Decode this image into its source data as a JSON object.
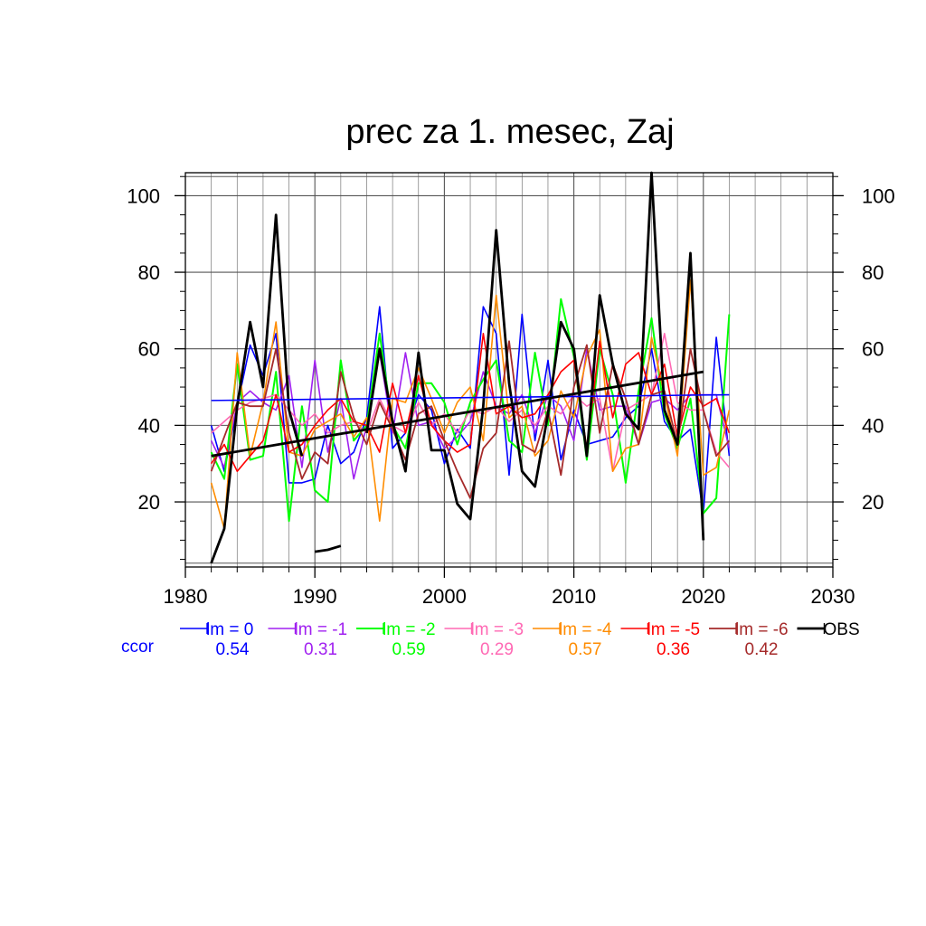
{
  "chart_data": {
    "type": "line",
    "title": "prec za 1. mesec, Zaj",
    "xlim": [
      1980,
      2030
    ],
    "ylim": [
      3,
      106
    ],
    "x_ticks": [
      1980,
      1990,
      2000,
      2010,
      2020,
      2030
    ],
    "y_ticks": [
      20,
      40,
      60,
      80,
      100
    ],
    "grid": true,
    "legend_position": "bottom",
    "ccor_label": "ccor",
    "x": [
      1982,
      1983,
      1984,
      1985,
      1986,
      1987,
      1988,
      1989,
      1990,
      1991,
      1992,
      1993,
      1994,
      1995,
      1996,
      1997,
      1998,
      1999,
      2000,
      2001,
      2002,
      2003,
      2004,
      2005,
      2006,
      2007,
      2008,
      2009,
      2010,
      2011,
      2012,
      2013,
      2014,
      2015,
      2016,
      2017,
      2018,
      2019,
      2020,
      2021,
      2022
    ],
    "series": [
      {
        "name": "lm = 0",
        "ccor": "0.54",
        "color": "#0000ff",
        "width": 1.6,
        "values": [
          40,
          28,
          45,
          61,
          53,
          64,
          25,
          25,
          26,
          40,
          30,
          33,
          42,
          71,
          34,
          38,
          48,
          44,
          30,
          39,
          34,
          71,
          64,
          27,
          69,
          36,
          57,
          31,
          44,
          35,
          36,
          37,
          42,
          45,
          60,
          41,
          36,
          39,
          17,
          63,
          32
        ]
      },
      {
        "name": "lm = -1",
        "ccor": "0.31",
        "color": "#a020f0",
        "width": 1.6,
        "values": [
          36,
          29,
          46,
          49,
          46,
          44,
          53,
          29,
          57,
          33,
          47,
          26,
          40,
          59,
          38,
          59,
          40,
          41,
          34,
          37,
          41,
          54,
          45,
          43,
          48,
          38,
          48,
          45,
          36,
          60,
          44,
          45,
          45,
          35,
          46,
          47,
          44,
          48,
          48,
          48,
          34
        ]
      },
      {
        "name": "lm = -2",
        "ccor": "0.59",
        "color": "#00ff00",
        "width": 2.0,
        "values": [
          33,
          26,
          56,
          31,
          32,
          54,
          15,
          45,
          23,
          20,
          57,
          36,
          40,
          64,
          40,
          34,
          51,
          51,
          46,
          35,
          46,
          52,
          57,
          36,
          33,
          59,
          40,
          73,
          58,
          31,
          60,
          48,
          25,
          49,
          68,
          43,
          34,
          47,
          17,
          21,
          69
        ]
      },
      {
        "name": "lm = -3",
        "ccor": "0.29",
        "color": "#ff69b4",
        "width": 1.6,
        "values": [
          38,
          41,
          44,
          46,
          47,
          48,
          44,
          40,
          43,
          38,
          40,
          41,
          38,
          47,
          40,
          38,
          46,
          40,
          43,
          38,
          44,
          43,
          45,
          41,
          44,
          40,
          45,
          43,
          48,
          45,
          47,
          28,
          44,
          46,
          48,
          64,
          46,
          44,
          44,
          33,
          29
        ]
      },
      {
        "name": "lm = -4",
        "ccor": "0.57",
        "color": "#ff8c00",
        "width": 1.6,
        "values": [
          25,
          13,
          59,
          32,
          46,
          67,
          33,
          32,
          39,
          41,
          43,
          37,
          42,
          15,
          47,
          46,
          55,
          47,
          38,
          46,
          50,
          36,
          74,
          42,
          45,
          32,
          36,
          49,
          42,
          58,
          65,
          28,
          34,
          35,
          63,
          48,
          32,
          78,
          27,
          29,
          44
        ]
      },
      {
        "name": "lm = -5",
        "ccor": "0.36",
        "color": "#ff0000",
        "width": 1.6,
        "values": [
          30,
          35,
          28,
          32,
          36,
          48,
          33,
          35,
          40,
          44,
          47,
          41,
          40,
          33,
          51,
          38,
          53,
          40,
          36,
          33,
          35,
          64,
          43,
          45,
          42,
          43,
          48,
          54,
          57,
          34,
          62,
          42,
          56,
          59,
          48,
          56,
          37,
          50,
          45,
          47,
          38
        ]
      },
      {
        "name": "lm = -6",
        "ccor": "0.42",
        "color": "#a52a2a",
        "width": 1.8,
        "values": [
          28,
          37,
          46,
          45,
          45,
          60,
          38,
          26,
          33,
          30,
          54,
          42,
          35,
          46,
          39,
          31,
          43,
          45,
          36,
          28,
          21,
          34,
          38,
          62,
          35,
          33,
          44,
          27,
          50,
          61,
          38,
          56,
          47,
          35,
          48,
          49,
          35,
          60,
          44,
          32,
          36
        ]
      },
      {
        "name": "OBS",
        "ccor": "",
        "color": "#000000",
        "width": 2.8,
        "values": [
          4,
          13,
          45,
          67,
          50,
          95,
          44,
          32,
          null,
          null,
          null,
          null,
          38,
          60,
          41,
          28,
          59,
          33.5,
          33.5,
          19.5,
          15.5,
          45,
          91,
          51,
          28,
          24,
          43,
          67,
          60,
          32,
          74,
          56,
          43,
          39,
          106,
          44,
          35,
          85,
          10,
          null,
          null
        ]
      },
      {
        "name": "OBS-early-segment",
        "ccor": "",
        "color": "#000000",
        "width": 2.8,
        "values": [
          null,
          null,
          null,
          null,
          null,
          null,
          null,
          null,
          7,
          7.5,
          8.5,
          null,
          null,
          null,
          null,
          null,
          null,
          null,
          null,
          null,
          null,
          null,
          null,
          null,
          null,
          null,
          null,
          null,
          null,
          null,
          null,
          null,
          null,
          null,
          null,
          null,
          null,
          null,
          null,
          null,
          null
        ]
      }
    ],
    "trend_lines": [
      {
        "name": "lm = 0 trend",
        "color": "#0000ff",
        "width": 1.6,
        "x": [
          1982,
          2022
        ],
        "y": [
          46.5,
          48
        ]
      },
      {
        "name": "OBS trend",
        "color": "#000000",
        "width": 2.8,
        "x": [
          1982,
          2020
        ],
        "y": [
          32,
          54
        ]
      }
    ]
  }
}
